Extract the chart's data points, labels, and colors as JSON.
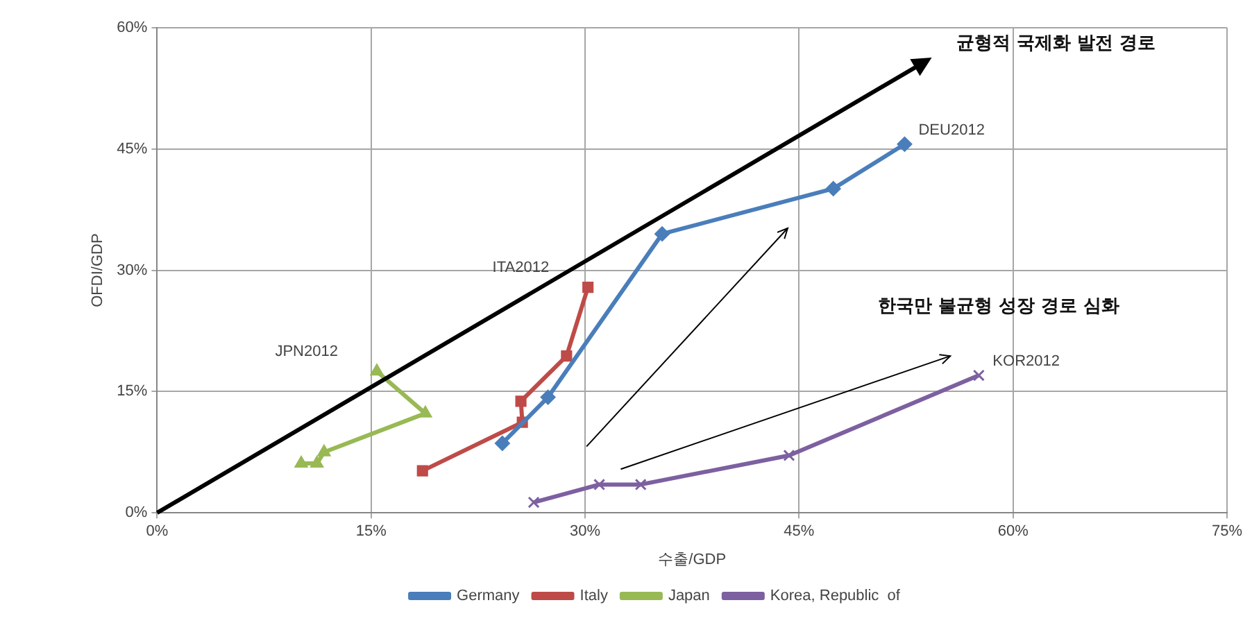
{
  "chart_data": {
    "type": "line",
    "xlabel": "수출/GDP",
    "ylabel": "OFDI/GDP",
    "xlim": [
      0,
      75
    ],
    "ylim": [
      0,
      60
    ],
    "xticks": [
      {
        "value": 0,
        "label": "0%"
      },
      {
        "value": 15,
        "label": "15%"
      },
      {
        "value": 30,
        "label": "30%"
      },
      {
        "value": 45,
        "label": "45%"
      },
      {
        "value": 60,
        "label": "60%"
      },
      {
        "value": 75,
        "label": "75%"
      }
    ],
    "yticks": [
      {
        "value": 0,
        "label": "0%"
      },
      {
        "value": 15,
        "label": "15%"
      },
      {
        "value": 30,
        "label": "30%"
      },
      {
        "value": 45,
        "label": "45%"
      },
      {
        "value": 60,
        "label": "60%"
      }
    ],
    "grid": true,
    "legend": "bottom",
    "series": [
      {
        "name": "Germany",
        "color": "#4a7ebb",
        "marker": "diamond",
        "x": [
          24.2,
          27.4,
          35.4,
          47.4,
          52.4
        ],
        "values": [
          8.6,
          14.3,
          34.5,
          40.1,
          45.6
        ]
      },
      {
        "name": "Italy",
        "color": "#be4b48",
        "marker": "square",
        "x": [
          18.6,
          25.6,
          25.5,
          28.7,
          30.2
        ],
        "values": [
          5.2,
          11.2,
          13.8,
          19.4,
          27.9
        ]
      },
      {
        "name": "Japan",
        "color": "#98b954",
        "marker": "triangle",
        "x": [
          10.1,
          11.2,
          11.7,
          18.8,
          15.4
        ],
        "values": [
          6.1,
          6.1,
          7.5,
          12.3,
          17.5
        ]
      },
      {
        "name": "Korea, Republic  of",
        "color": "#7d60a0",
        "marker": "cross",
        "x": [
          26.4,
          31.0,
          33.9,
          44.3,
          57.6
        ],
        "values": [
          1.3,
          3.5,
          3.5,
          7.1,
          17.0
        ]
      }
    ],
    "annotations": [
      {
        "text": "DEU2012",
        "x": 52.4,
        "y": 45.6
      },
      {
        "text": "ITA2012",
        "x": 30.2,
        "y": 27.9
      },
      {
        "text": "JPN2012",
        "x": 15.4,
        "y": 17.5
      },
      {
        "text": "KOR2012",
        "x": 57.6,
        "y": 17.0
      },
      "균형적 국제화 발전 경로",
      "한국만 불균형 성장 경로 심화"
    ]
  }
}
